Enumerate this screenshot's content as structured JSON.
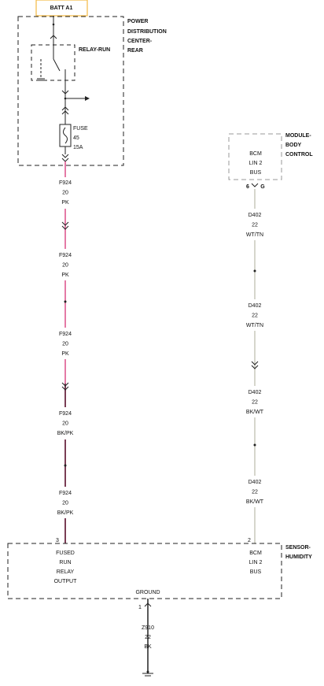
{
  "batt": {
    "label": "BATT A1"
  },
  "pdc": {
    "title": [
      "POWER",
      "DISTRIBUTION",
      "CENTER-",
      "REAR"
    ],
    "relay": "RELAY-RUN",
    "fuse": [
      "FUSE",
      "45",
      "15A"
    ]
  },
  "bcm": {
    "title": [
      "MODULE-",
      "BODY",
      "CONTROL"
    ],
    "pin": [
      "BCM",
      "LIN 2",
      "BUS"
    ],
    "cavity": "6",
    "connector": "G"
  },
  "left_wire": [
    [
      "F924",
      "20",
      "PK"
    ],
    [
      "F924",
      "20",
      "PK"
    ],
    [
      "F924",
      "20",
      "PK"
    ],
    [
      "F924",
      "20",
      "BK/PK"
    ],
    [
      "F924",
      "20",
      "BK/PK"
    ]
  ],
  "right_wire": [
    [
      "D402",
      "22",
      "WT/TN"
    ],
    [
      "D402",
      "22",
      "WT/TN"
    ],
    [
      "D402",
      "22",
      "BK/WT"
    ],
    [
      "D402",
      "22",
      "BK/WT"
    ]
  ],
  "sensor": {
    "title": [
      "SENSOR-",
      "HUMIDITY"
    ],
    "left_cavity": "3",
    "right_cavity": "2",
    "left_pin": [
      "FUSED",
      "RUN",
      "RELAY",
      "OUTPUT"
    ],
    "right_pin": [
      "BCM",
      "LIN 2",
      "BUS"
    ],
    "ground_label": "GROUND",
    "ground_cavity": "1"
  },
  "ground_wire": [
    "Z910",
    "22",
    "BK"
  ]
}
